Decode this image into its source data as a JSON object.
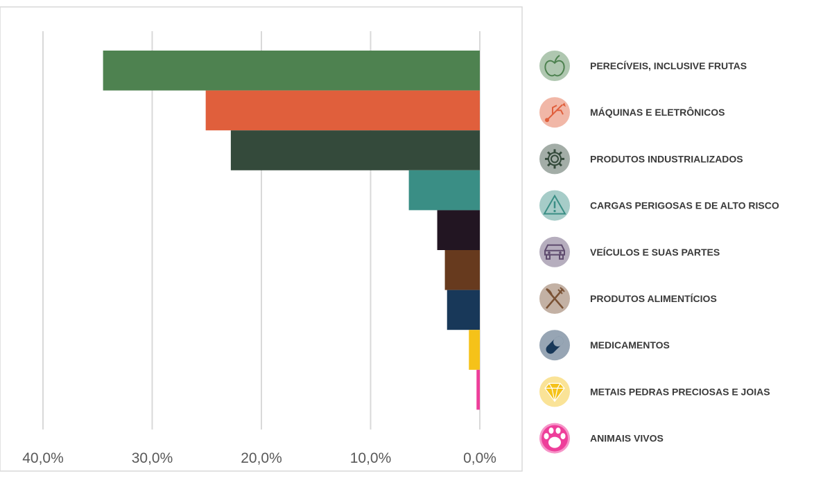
{
  "chart_data": {
    "type": "bar",
    "orientation": "horizontal",
    "x_direction": "reversed",
    "categories": [
      "PERECÍVEIS, INCLUSIVE FRUTAS",
      "MÁQUINAS E ELETRÔNICOS",
      "PRODUTOS INDUSTRIALIZADOS",
      "CARGAS PERIGOSAS E DE ALTO RISCO",
      "VEÍCULOS E SUAS PARTES",
      "PRODUTOS ALIMENTÍCIOS",
      "MEDICAMENTOS",
      "METAIS PEDRAS PRECIOSAS E JOIAS",
      "ANIMAIS VIVOS"
    ],
    "values": [
      34.5,
      25.1,
      22.8,
      6.5,
      3.9,
      3.2,
      3.0,
      1.0,
      0.3
    ],
    "colors": [
      "#4E8250",
      "#E05F3C",
      "#344A3B",
      "#3A8E85",
      "#221522",
      "#673A1E",
      "#183859",
      "#F5C219",
      "#EE3E9A"
    ],
    "icons": [
      "apple-icon",
      "usb-plug-icon",
      "gear-icon",
      "warning-triangle-icon",
      "car-icon",
      "fork-knife-icon",
      "capsule-icon",
      "diamond-icon",
      "paw-icon"
    ],
    "icon_colors": [
      "#4E8250",
      "#E05F3C",
      "#344A3B",
      "#3A8E85",
      "#5E4B6E",
      "#7A5235",
      "#183859",
      "#F5C219",
      "#EE3E9A"
    ],
    "xlim": [
      40,
      0
    ],
    "x_ticks": [
      "40,0%",
      "30,0%",
      "20,0%",
      "10,0%",
      "0,0%"
    ],
    "x_tick_values": [
      40,
      30,
      20,
      10,
      0
    ],
    "grid": true,
    "legend_position": "right",
    "title": "",
    "xlabel": "",
    "ylabel": ""
  }
}
